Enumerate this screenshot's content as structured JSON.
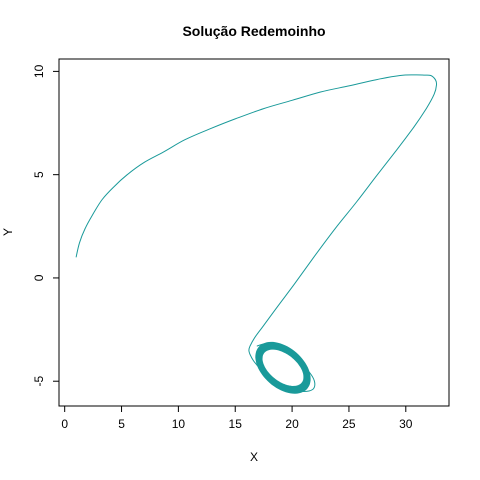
{
  "chart_data": {
    "type": "line",
    "title": "Solução Redemoinho",
    "xlabel": "X",
    "ylabel": "Y",
    "xlim": [
      -0.5,
      33.8
    ],
    "ylim": [
      -6.2,
      10.6
    ],
    "x_ticks": [
      0,
      5,
      10,
      15,
      20,
      25,
      30
    ],
    "y_ticks": [
      -5,
      0,
      5,
      10
    ],
    "grid": false,
    "legend": "none",
    "line_color": "#1a9a9a",
    "series": [
      {
        "x": [
          1.0,
          1.3,
          1.8,
          2.5,
          3.3,
          4.3,
          5.5,
          7.0,
          8.7,
          10.6,
          12.7,
          15.0,
          17.5,
          20.0,
          22.5,
          25.0,
          27.4,
          29.5,
          30.8,
          31.6,
          32.2,
          32.6,
          32.7,
          32.5,
          31.8,
          30.7,
          29.2,
          27.5,
          25.7,
          23.8,
          21.9,
          20.2,
          18.7,
          17.5,
          16.7,
          16.3,
          16.2,
          16.3,
          16.6,
          17.2,
          18.0,
          19.0,
          20.1,
          21.0,
          21.8,
          22.0,
          21.7,
          20.9,
          19.8,
          18.6,
          17.6,
          16.9
        ],
        "y": [
          1.0,
          1.7,
          2.4,
          3.1,
          3.8,
          4.4,
          5.0,
          5.6,
          6.1,
          6.7,
          7.2,
          7.7,
          8.2,
          8.6,
          9.0,
          9.3,
          9.6,
          9.8,
          9.83,
          9.82,
          9.8,
          9.6,
          9.35,
          8.9,
          8.2,
          7.3,
          6.2,
          5.0,
          3.7,
          2.4,
          1.0,
          -0.3,
          -1.4,
          -2.3,
          -2.9,
          -3.3,
          -3.5,
          -3.7,
          -4.0,
          -4.4,
          -4.8,
          -5.2,
          -5.4,
          -5.5,
          -5.4,
          -5.1,
          -4.7,
          -4.2,
          -3.7,
          -3.35,
          -3.2,
          -3.3
        ]
      }
    ]
  }
}
